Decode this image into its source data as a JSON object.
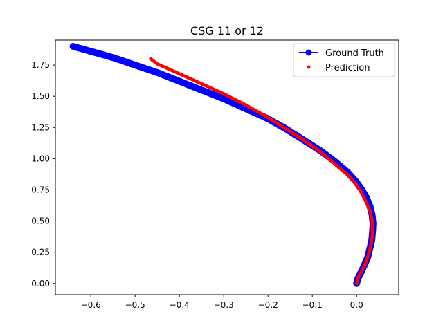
{
  "chart_data": {
    "type": "line",
    "title": "CSG 11 or 12",
    "xlabel": "",
    "ylabel": "",
    "xlim": [
      -0.68,
      0.095
    ],
    "ylim": [
      -0.09,
      1.95
    ],
    "xticks": [
      -0.6,
      -0.5,
      -0.4,
      -0.3,
      -0.2,
      -0.1,
      0.0
    ],
    "xtick_labels": [
      "−0.6",
      "−0.5",
      "−0.4",
      "−0.3",
      "−0.2",
      "−0.1",
      "0.0"
    ],
    "yticks": [
      0.0,
      0.25,
      0.5,
      0.75,
      1.0,
      1.25,
      1.5,
      1.75
    ],
    "ytick_labels": [
      "0.00",
      "0.25",
      "0.50",
      "0.75",
      "1.00",
      "1.25",
      "1.50",
      "1.75"
    ],
    "grid": false,
    "legend_position": "top-right",
    "series": [
      {
        "name": "Ground Truth",
        "color": "#0000ff",
        "marker": "circle",
        "line": "solid",
        "x": [
          0.0,
          0.003,
          0.01,
          0.018,
          0.025,
          0.03,
          0.034,
          0.036,
          0.037,
          0.035,
          0.03,
          0.022,
          0.012,
          0.0,
          -0.02,
          -0.05,
          -0.08,
          -0.12,
          -0.16,
          -0.2,
          -0.25,
          -0.3,
          -0.35,
          -0.4,
          -0.45,
          -0.5,
          -0.55,
          -0.6,
          -0.64
        ],
        "y": [
          0.0,
          0.04,
          0.09,
          0.15,
          0.21,
          0.28,
          0.34,
          0.41,
          0.48,
          0.55,
          0.62,
          0.69,
          0.75,
          0.81,
          0.89,
          0.98,
          1.06,
          1.15,
          1.24,
          1.32,
          1.4,
          1.48,
          1.55,
          1.62,
          1.69,
          1.75,
          1.81,
          1.86,
          1.9
        ]
      },
      {
        "name": "Prediction",
        "color": "#ff0000",
        "marker": "dot",
        "line": "none",
        "x": [
          0.0,
          0.004,
          0.012,
          0.02,
          0.027,
          0.032,
          0.035,
          0.036,
          0.035,
          0.03,
          0.022,
          0.012,
          0.0,
          -0.02,
          -0.05,
          -0.08,
          -0.12,
          -0.16,
          -0.2,
          -0.25,
          -0.3,
          -0.35,
          -0.4,
          -0.45,
          -0.465
        ],
        "y": [
          0.0,
          0.05,
          0.1,
          0.16,
          0.23,
          0.3,
          0.37,
          0.44,
          0.51,
          0.58,
          0.65,
          0.72,
          0.79,
          0.87,
          0.96,
          1.05,
          1.15,
          1.24,
          1.33,
          1.43,
          1.52,
          1.6,
          1.68,
          1.76,
          1.8
        ]
      }
    ]
  }
}
